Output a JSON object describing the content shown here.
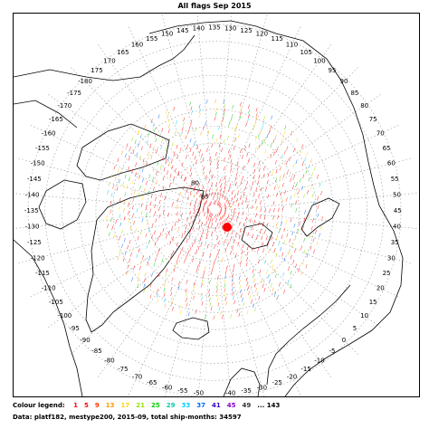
{
  "title": "All flags Sep 2015",
  "longitude_labels": [
    {
      "lon": -180,
      "text": "-180"
    },
    {
      "lon": -175,
      "text": "-175"
    },
    {
      "lon": -170,
      "text": "-170"
    },
    {
      "lon": -165,
      "text": "-165"
    },
    {
      "lon": -160,
      "text": "-160"
    },
    {
      "lon": -155,
      "text": "-155"
    },
    {
      "lon": -150,
      "text": "-150"
    },
    {
      "lon": -145,
      "text": "-145"
    },
    {
      "lon": -140,
      "text": "-140"
    },
    {
      "lon": -135,
      "text": "-135"
    },
    {
      "lon": -130,
      "text": "-130"
    },
    {
      "lon": -125,
      "text": "-125"
    },
    {
      "lon": -120,
      "text": "-120"
    },
    {
      "lon": -115,
      "text": "-115"
    },
    {
      "lon": -110,
      "text": "-110"
    },
    {
      "lon": -105,
      "text": "-105"
    },
    {
      "lon": -100,
      "text": "-100"
    },
    {
      "lon": -95,
      "text": "-95"
    },
    {
      "lon": -90,
      "text": "-90"
    },
    {
      "lon": -85,
      "text": "-85"
    },
    {
      "lon": -80,
      "text": "-80"
    },
    {
      "lon": -75,
      "text": "-75"
    },
    {
      "lon": -70,
      "text": "-70"
    },
    {
      "lon": -65,
      "text": "-65"
    },
    {
      "lon": -60,
      "text": "-60"
    },
    {
      "lon": -55,
      "text": "-55"
    },
    {
      "lon": -50,
      "text": "-50"
    },
    {
      "lon": -45,
      "text": "-45"
    },
    {
      "lon": -40,
      "text": "-40"
    },
    {
      "lon": -35,
      "text": "-35"
    },
    {
      "lon": -30,
      "text": "-30"
    },
    {
      "lon": -25,
      "text": "-25"
    },
    {
      "lon": -20,
      "text": "-20"
    },
    {
      "lon": -15,
      "text": "-15"
    },
    {
      "lon": -10,
      "text": "-10"
    },
    {
      "lon": -5,
      "text": "-5"
    },
    {
      "lon": 0,
      "text": "0"
    },
    {
      "lon": 5,
      "text": "5"
    },
    {
      "lon": 10,
      "text": "10"
    },
    {
      "lon": 15,
      "text": "15"
    },
    {
      "lon": 20,
      "text": "20"
    },
    {
      "lon": 25,
      "text": "25"
    },
    {
      "lon": 30,
      "text": "30"
    },
    {
      "lon": 35,
      "text": "35"
    },
    {
      "lon": 40,
      "text": "40"
    },
    {
      "lon": 45,
      "text": "45"
    },
    {
      "lon": 50,
      "text": "50"
    },
    {
      "lon": 55,
      "text": "55"
    },
    {
      "lon": 60,
      "text": "60"
    },
    {
      "lon": 65,
      "text": "65"
    },
    {
      "lon": 70,
      "text": "70"
    },
    {
      "lon": 75,
      "text": "75"
    },
    {
      "lon": 80,
      "text": "80"
    },
    {
      "lon": 85,
      "text": "85"
    },
    {
      "lon": 90,
      "text": "90"
    },
    {
      "lon": 95,
      "text": "95"
    },
    {
      "lon": 100,
      "text": "100"
    },
    {
      "lon": 105,
      "text": "105"
    },
    {
      "lon": 110,
      "text": "110"
    },
    {
      "lon": 115,
      "text": "115"
    },
    {
      "lon": 120,
      "text": "120"
    },
    {
      "lon": 125,
      "text": "125"
    },
    {
      "lon": 130,
      "text": "130"
    },
    {
      "lon": 135,
      "text": "135"
    },
    {
      "lon": 140,
      "text": "140"
    },
    {
      "lon": 145,
      "text": "145"
    },
    {
      "lon": 150,
      "text": "150"
    },
    {
      "lon": 155,
      "text": "155"
    },
    {
      "lon": 160,
      "text": "160"
    },
    {
      "lon": 165,
      "text": "165"
    },
    {
      "lon": 170,
      "text": "170"
    },
    {
      "lon": 175,
      "text": "175"
    }
  ],
  "latitude_labels": [
    {
      "lat": 85,
      "text": "85"
    },
    {
      "lat": 80,
      "text": "80"
    }
  ],
  "legend": {
    "label": "Colour legend:",
    "items": [
      {
        "text": "1",
        "color": "#ff0000"
      },
      {
        "text": "5",
        "color": "#ff0000"
      },
      {
        "text": "9",
        "color": "#ff3300"
      },
      {
        "text": "13",
        "color": "#ff9900"
      },
      {
        "text": "17",
        "color": "#ffd700"
      },
      {
        "text": "21",
        "color": "#99dd00"
      },
      {
        "text": "25",
        "color": "#00cc00"
      },
      {
        "text": "29",
        "color": "#00ccaa"
      },
      {
        "text": "33",
        "color": "#00ccff"
      },
      {
        "text": "37",
        "color": "#0066ff"
      },
      {
        "text": "41",
        "color": "#3300cc"
      },
      {
        "text": "45",
        "color": "#8800cc"
      },
      {
        "text": "49",
        "color": "#333333"
      },
      {
        "text": "... 143",
        "color": "#000000"
      }
    ]
  },
  "footer": "Data: platf182, mestype200,  2015-09, total ship-months: 34597",
  "colors": {
    "graticule": "#999999",
    "coast": "#000000",
    "density_low": "#ff0000",
    "density_high": "#000000"
  }
}
